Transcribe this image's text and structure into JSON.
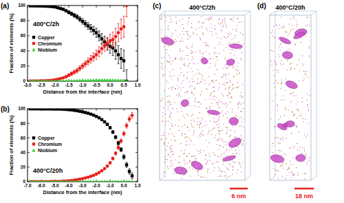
{
  "chart_data": [
    {
      "type": "scatter",
      "title": "(a)",
      "annotation": "400°C/2h",
      "x_label": "Distance from the interface (nm)",
      "y_label": "Fraction of elements (%)",
      "x": [
        -2.9,
        -2.8,
        -2.7,
        -2.6,
        -2.5,
        -2.4,
        -2.3,
        -2.2,
        -2.1,
        -2,
        -1.9,
        -1.8,
        -1.7,
        -1.6,
        -1.5,
        -1.4,
        -1.3,
        -1.2,
        -1.1,
        -1,
        -0.9,
        -0.8,
        -0.7,
        -0.6,
        -0.5,
        -0.4,
        -0.3,
        -0.2,
        -0.1,
        0,
        0.1,
        0.2,
        0.3,
        0.4,
        0.5,
        0.6
      ],
      "xlim": [
        -3,
        1
      ],
      "xticks": [
        {
          "value": -3,
          "label": "-3.0"
        },
        {
          "value": -2.5,
          "label": "-2.5"
        },
        {
          "value": -2,
          "label": "-2.0"
        },
        {
          "value": -1.5,
          "label": "-1.5"
        },
        {
          "value": -1,
          "label": "-1.0"
        },
        {
          "value": -0.5,
          "label": "-0.5"
        },
        {
          "value": 0,
          "label": "0.0"
        },
        {
          "value": 0.5,
          "label": "0.5"
        },
        {
          "value": 1,
          "label": "1.0"
        }
      ],
      "ylim": [
        0,
        100
      ],
      "yticks": [
        0,
        20,
        40,
        60,
        80,
        100
      ],
      "legend": "left",
      "series": [
        {
          "name": "Copper",
          "color": "#000000",
          "marker": "square",
          "values": [
            99.5,
            99.5,
            99.4,
            99.4,
            99.3,
            99.2,
            99,
            98.8,
            98.5,
            98,
            97,
            96,
            95,
            93,
            91,
            89,
            87,
            85,
            82,
            79,
            76,
            73,
            70,
            67,
            64,
            60,
            56,
            52,
            49,
            46,
            44,
            40,
            35,
            30,
            27,
            0
          ],
          "errors": [
            0.3,
            0.3,
            0.3,
            0.4,
            0.4,
            0.5,
            0.5,
            0.6,
            0.7,
            0.8,
            1,
            1.2,
            1.4,
            1.7,
            2,
            2.3,
            2.6,
            3,
            3.3,
            3.6,
            4,
            4.5,
            5,
            5.5,
            6,
            6.5,
            7,
            7.5,
            8,
            9,
            10,
            11,
            12,
            13,
            14,
            15
          ]
        },
        {
          "name": "Chromium",
          "color": "#e8201c",
          "marker": "circle",
          "values": [
            0.3,
            0.3,
            0.4,
            0.4,
            0.5,
            0.6,
            0.8,
            1,
            1.3,
            1.8,
            2.5,
            3.5,
            4.5,
            6,
            8,
            10,
            12,
            14,
            17,
            20,
            23,
            26,
            29,
            32,
            35,
            39,
            43,
            47,
            50,
            53,
            55,
            59,
            64,
            69,
            72,
            100
          ],
          "errors": [
            0.3,
            0.3,
            0.3,
            0.4,
            0.4,
            0.5,
            0.5,
            0.6,
            0.7,
            0.8,
            1,
            1.2,
            1.4,
            1.7,
            2,
            2.3,
            2.6,
            3,
            3.3,
            3.6,
            4,
            4.5,
            5,
            5.5,
            6,
            6.5,
            7,
            7.5,
            8,
            9,
            10,
            11,
            12,
            13,
            14,
            15
          ]
        },
        {
          "name": "Niobium",
          "color": "#2fd02f",
          "marker": "triangle",
          "values": [
            0.2,
            0.2,
            0.2,
            0.2,
            0.2,
            0.2,
            0.2,
            0.2,
            0.2,
            0.2,
            0.3,
            0.3,
            0.3,
            0.4,
            0.5,
            0.6,
            0.7,
            0.8,
            0.9,
            1,
            1,
            1.1,
            1.2,
            1.3,
            1.4,
            1.5,
            1.5,
            1.6,
            1.5,
            1.4,
            1.3,
            1.2,
            1.1,
            1,
            0.8,
            0
          ],
          "errors": [
            0.1,
            0.1,
            0.1,
            0.1,
            0.1,
            0.1,
            0.1,
            0.1,
            0.1,
            0.1,
            0.2,
            0.2,
            0.2,
            0.2,
            0.2,
            0.2,
            0.2,
            0.2,
            0.2,
            0.2,
            0.4,
            0.4,
            0.4,
            0.4,
            0.4,
            0.4,
            0.4,
            0.4,
            0.4,
            0.4,
            0.6,
            0.6,
            0.6,
            0.6,
            0.6,
            0.6
          ]
        }
      ]
    },
    {
      "type": "scatter",
      "title": "(b)",
      "annotation": "400°C/20h",
      "x_label": "Distance from the interface (nm)",
      "y_label": "Fraction of elements (%)",
      "x": [
        -6.8,
        -6.6,
        -6.4,
        -6.2,
        -6,
        -5.8,
        -5.6,
        -5.4,
        -5.2,
        -5,
        -4.8,
        -4.6,
        -4.4,
        -4.2,
        -4,
        -3.8,
        -3.6,
        -3.4,
        -3.2,
        -3,
        -2.8,
        -2.6,
        -2.4,
        -2.2,
        -2,
        -1.8,
        -1.6,
        -1.4,
        -1.2,
        -1,
        -0.8,
        -0.6,
        -0.4,
        -0.2,
        0,
        0.2,
        0.4,
        0.6
      ],
      "xlim": [
        -7,
        1
      ],
      "xticks": [
        {
          "value": -7,
          "label": "-7.0"
        },
        {
          "value": -6,
          "label": "-6.0"
        },
        {
          "value": -5,
          "label": "-5.0"
        },
        {
          "value": -4,
          "label": "-4.0"
        },
        {
          "value": -3,
          "label": "-3.0"
        },
        {
          "value": -2,
          "label": "-2.0"
        },
        {
          "value": -1,
          "label": "-1.0"
        },
        {
          "value": 0,
          "label": "0.0"
        },
        {
          "value": 1,
          "label": "1.0"
        }
      ],
      "ylim": [
        0,
        100
      ],
      "yticks": [
        0,
        20,
        40,
        60,
        80,
        100
      ],
      "legend": "lower left",
      "series": [
        {
          "name": "Copper",
          "color": "#000000",
          "marker": "square",
          "values": [
            99.8,
            99.8,
            99.8,
            99.8,
            99.7,
            99.7,
            99.7,
            99.7,
            99.6,
            99.6,
            99.5,
            99.5,
            99.2,
            99,
            98.7,
            98.3,
            97.8,
            97.2,
            96.5,
            95.7,
            94.8,
            93.8,
            92.6,
            91.2,
            89.5,
            87.5,
            85,
            82,
            78.5,
            74,
            68,
            61,
            53,
            44,
            34,
            23,
            14,
            8
          ],
          "errors": [
            0.1,
            0.1,
            0.1,
            0.1,
            0.1,
            0.1,
            0.1,
            0.1,
            0.1,
            0.1,
            0.1,
            0.1,
            0.2,
            0.2,
            0.3,
            0.3,
            0.4,
            0.4,
            0.5,
            0.5,
            0.6,
            0.7,
            0.8,
            0.9,
            1,
            1.1,
            1.2,
            1.4,
            1.6,
            1.8,
            2,
            2.2,
            2.5,
            2.8,
            3,
            3.3,
            3.6,
            4
          ]
        },
        {
          "name": "Chromium",
          "color": "#e8201c",
          "marker": "circle",
          "values": [
            0.1,
            0.1,
            0.1,
            0.1,
            0.2,
            0.2,
            0.2,
            0.2,
            0.3,
            0.3,
            0.4,
            0.4,
            0.7,
            0.9,
            1.2,
            1.6,
            2.1,
            2.7,
            3.4,
            4.2,
            5.1,
            6.1,
            7.3,
            8.7,
            10.4,
            12.4,
            14.9,
            17.9,
            21.4,
            25.8,
            31.8,
            38.8,
            46.8,
            55.8,
            65.8,
            76.8,
            85.8,
            91
          ],
          "errors": [
            0.1,
            0.1,
            0.1,
            0.1,
            0.1,
            0.1,
            0.1,
            0.1,
            0.1,
            0.1,
            0.1,
            0.1,
            0.2,
            0.2,
            0.3,
            0.3,
            0.4,
            0.4,
            0.5,
            0.5,
            0.6,
            0.7,
            0.8,
            0.9,
            1,
            1.1,
            1.2,
            1.4,
            1.6,
            1.8,
            2,
            2.2,
            2.5,
            2.8,
            3,
            3.3,
            3.6,
            4
          ]
        },
        {
          "name": "Niobium",
          "color": "#2fd02f",
          "marker": "triangle",
          "values": [
            0.1,
            0.1,
            0.1,
            0.1,
            0.1,
            0.1,
            0.1,
            0.1,
            0.1,
            0.1,
            0.1,
            0.1,
            0.1,
            0.1,
            0.1,
            0.1,
            0.1,
            0.1,
            0.1,
            0.1,
            0.2,
            0.2,
            0.2,
            0.2,
            0.2,
            0.2,
            0.2,
            0.2,
            0.2,
            0.2,
            0.2,
            0.2,
            0.2,
            0.2,
            0.2,
            0.2,
            0.2,
            0.2
          ],
          "errors": [
            0.1,
            0.1,
            0.1,
            0.1,
            0.1,
            0.1,
            0.1,
            0.1,
            0.1,
            0.1,
            0.1,
            0.1,
            0.1,
            0.1,
            0.1,
            0.1,
            0.1,
            0.1,
            0.1,
            0.1,
            0.1,
            0.1,
            0.1,
            0.1,
            0.1,
            0.1,
            0.1,
            0.1,
            0.1,
            0.1,
            0.1,
            0.1,
            0.1,
            0.1,
            0.1,
            0.1,
            0.1,
            0.1
          ]
        }
      ]
    }
  ],
  "images": [
    {
      "label": "(c)",
      "title": "400°C/2h",
      "scale_bar": "6 nm"
    },
    {
      "label": "(d)",
      "title": "400°C/20h",
      "scale_bar": "18 nm"
    }
  ]
}
